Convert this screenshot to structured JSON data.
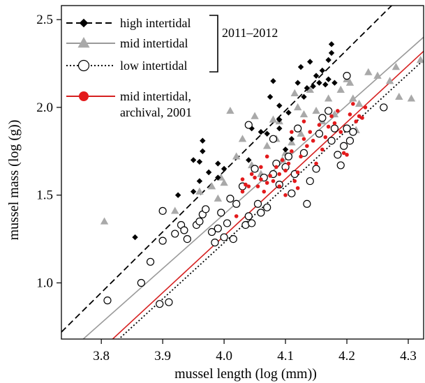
{
  "chart_data": {
    "type": "scatter",
    "xlabel": "mussel length (log (mm))",
    "ylabel": "mussel mass (log (g))",
    "xlim": [
      3.735,
      4.325
    ],
    "ylim": [
      0.68,
      2.58
    ],
    "xticks": [
      "3.8",
      "3.9",
      "4.0",
      "4.1",
      "4.2",
      "4.3"
    ],
    "yticks": [
      "1.0",
      "1.5",
      "2.0",
      "2.5"
    ],
    "legend_position": "top-left",
    "legend_bracket_label": "2011–2012",
    "grid": false,
    "series": [
      {
        "name": "high intertidal",
        "marker": "filled-diamond",
        "color": "#000000",
        "line_style": "dashed",
        "line": [
          [
            3.735,
            0.72
          ],
          [
            4.325,
            2.76
          ]
        ],
        "points": [
          [
            3.855,
            1.26
          ],
          [
            3.925,
            1.5
          ],
          [
            3.95,
            1.52
          ],
          [
            3.96,
            1.58
          ],
          [
            3.96,
            1.69
          ],
          [
            3.965,
            1.75
          ],
          [
            3.965,
            1.81
          ],
          [
            3.95,
            1.7
          ],
          [
            3.975,
            1.63
          ],
          [
            3.99,
            1.68
          ],
          [
            4.0,
            1.65
          ],
          [
            3.99,
            1.6
          ],
          [
            4.04,
            1.7
          ],
          [
            4.045,
            1.88
          ],
          [
            4.06,
            1.86
          ],
          [
            4.07,
            1.85
          ],
          [
            4.075,
            2.06
          ],
          [
            4.08,
            2.15
          ],
          [
            4.09,
            2.01
          ],
          [
            4.09,
            1.93
          ],
          [
            4.1,
            1.76
          ],
          [
            4.11,
            1.82
          ],
          [
            4.12,
            2.14
          ],
          [
            4.125,
            2.23
          ],
          [
            4.13,
            2.06
          ],
          [
            4.135,
            2.11
          ],
          [
            4.14,
            2.26
          ],
          [
            4.145,
            2.12
          ],
          [
            4.15,
            2.18
          ],
          [
            4.155,
            2.14
          ],
          [
            4.16,
            2.21
          ],
          [
            4.165,
            2.13
          ],
          [
            4.17,
            2.16
          ],
          [
            4.17,
            2.27
          ],
          [
            4.175,
            2.31
          ],
          [
            4.175,
            2.36
          ],
          [
            4.18,
            2.14
          ],
          [
            4.105,
            1.97
          ],
          [
            4.09,
            1.88
          ]
        ]
      },
      {
        "name": "mid intertidal",
        "marker": "grey-triangle",
        "color": "#a0a0a0",
        "line_style": "solid",
        "line": [
          [
            3.735,
            0.57
          ],
          [
            4.325,
            2.4
          ]
        ],
        "points": [
          [
            3.805,
            1.35
          ],
          [
            3.92,
            1.41
          ],
          [
            3.96,
            1.52
          ],
          [
            3.98,
            1.55
          ],
          [
            3.99,
            1.48
          ],
          [
            3.995,
            1.6
          ],
          [
            4.0,
            1.57
          ],
          [
            4.01,
            1.98
          ],
          [
            4.02,
            1.72
          ],
          [
            4.03,
            1.82
          ],
          [
            4.045,
            1.67
          ],
          [
            4.05,
            1.65
          ],
          [
            4.06,
            1.62
          ],
          [
            4.07,
            1.78
          ],
          [
            4.08,
            1.93
          ],
          [
            4.085,
            1.82
          ],
          [
            4.09,
            1.92
          ],
          [
            4.095,
            1.7
          ],
          [
            4.1,
            1.74
          ],
          [
            4.11,
            1.8
          ],
          [
            4.115,
            2.08
          ],
          [
            4.12,
            2.0
          ],
          [
            4.125,
            1.85
          ],
          [
            4.13,
            1.96
          ],
          [
            4.14,
            2.1
          ],
          [
            4.15,
            1.98
          ],
          [
            4.16,
            1.92
          ],
          [
            4.17,
            2.05
          ],
          [
            4.18,
            1.96
          ],
          [
            4.19,
            2.1
          ],
          [
            4.2,
            2.16
          ],
          [
            4.205,
            2.14
          ],
          [
            4.21,
            2.05
          ],
          [
            4.215,
            1.87
          ],
          [
            4.22,
            2.02
          ],
          [
            4.235,
            2.2
          ],
          [
            4.25,
            2.18
          ],
          [
            4.27,
            2.15
          ],
          [
            4.28,
            2.23
          ],
          [
            4.285,
            2.06
          ],
          [
            4.305,
            2.05
          ],
          [
            4.32,
            2.27
          ],
          [
            4.05,
            1.95
          ]
        ]
      },
      {
        "name": "low intertidal",
        "marker": "open-circle",
        "color": "#000000",
        "line_style": "dotted",
        "line": [
          [
            3.735,
            0.38
          ],
          [
            4.325,
            2.27
          ]
        ],
        "points": [
          [
            3.81,
            0.9
          ],
          [
            3.865,
            1.0
          ],
          [
            3.88,
            1.12
          ],
          [
            3.895,
            0.88
          ],
          [
            3.9,
            1.24
          ],
          [
            3.91,
            0.89
          ],
          [
            3.9,
            1.41
          ],
          [
            3.92,
            1.28
          ],
          [
            3.93,
            1.33
          ],
          [
            3.935,
            1.3
          ],
          [
            3.94,
            1.25
          ],
          [
            3.955,
            1.33
          ],
          [
            3.96,
            1.35
          ],
          [
            3.965,
            1.39
          ],
          [
            3.97,
            1.42
          ],
          [
            3.98,
            1.29
          ],
          [
            3.985,
            1.23
          ],
          [
            3.99,
            1.31
          ],
          [
            3.995,
            1.4
          ],
          [
            4.0,
            1.26
          ],
          [
            4.005,
            1.34
          ],
          [
            4.01,
            1.48
          ],
          [
            4.015,
            1.25
          ],
          [
            4.02,
            1.45
          ],
          [
            4.03,
            1.55
          ],
          [
            4.035,
            1.33
          ],
          [
            4.04,
            1.38
          ],
          [
            4.045,
            1.34
          ],
          [
            4.05,
            1.65
          ],
          [
            4.055,
            1.45
          ],
          [
            4.06,
            1.4
          ],
          [
            4.065,
            1.6
          ],
          [
            4.07,
            1.43
          ],
          [
            4.08,
            1.62
          ],
          [
            4.085,
            1.68
          ],
          [
            4.09,
            1.56
          ],
          [
            4.1,
            1.66
          ],
          [
            4.105,
            1.72
          ],
          [
            4.11,
            1.51
          ],
          [
            4.115,
            1.62
          ],
          [
            4.12,
            1.88
          ],
          [
            4.13,
            1.74
          ],
          [
            4.135,
            1.45
          ],
          [
            4.14,
            1.58
          ],
          [
            4.15,
            1.65
          ],
          [
            4.155,
            1.85
          ],
          [
            4.16,
            1.94
          ],
          [
            4.17,
            1.98
          ],
          [
            4.175,
            1.81
          ],
          [
            4.18,
            1.88
          ],
          [
            4.185,
            1.73
          ],
          [
            4.19,
            1.67
          ],
          [
            4.195,
            1.78
          ],
          [
            4.2,
            1.88
          ],
          [
            4.205,
            1.81
          ],
          [
            4.21,
            1.86
          ],
          [
            4.26,
            2.0
          ],
          [
            4.2,
            2.18
          ],
          [
            4.04,
            1.9
          ],
          [
            4.08,
            1.82
          ]
        ]
      },
      {
        "name": "mid intertidal, archival, 2001",
        "marker": "red-dot",
        "color": "#e31a1c",
        "line_style": "solid",
        "line": [
          [
            3.735,
            0.41
          ],
          [
            4.325,
            2.32
          ]
        ],
        "points": [
          [
            4.02,
            1.38
          ],
          [
            4.03,
            1.52
          ],
          [
            4.035,
            1.56
          ],
          [
            4.045,
            1.62
          ],
          [
            4.05,
            1.6
          ],
          [
            4.055,
            1.55
          ],
          [
            4.06,
            1.59
          ],
          [
            4.065,
            1.52
          ],
          [
            4.07,
            1.57
          ],
          [
            4.075,
            1.61
          ],
          [
            4.08,
            1.58
          ],
          [
            4.085,
            1.66
          ],
          [
            4.09,
            1.62
          ],
          [
            4.095,
            1.7
          ],
          [
            4.1,
            1.64
          ],
          [
            4.105,
            1.68
          ],
          [
            4.11,
            1.75
          ],
          [
            4.115,
            1.58
          ],
          [
            4.12,
            1.63
          ],
          [
            4.125,
            1.72
          ],
          [
            4.13,
            1.82
          ],
          [
            4.135,
            1.78
          ],
          [
            4.14,
            1.86
          ],
          [
            4.145,
            1.81
          ],
          [
            4.15,
            1.68
          ],
          [
            4.155,
            1.9
          ],
          [
            4.16,
            1.76
          ],
          [
            4.165,
            1.83
          ],
          [
            4.17,
            1.89
          ],
          [
            4.175,
            1.95
          ],
          [
            4.18,
            1.91
          ],
          [
            4.185,
            1.98
          ],
          [
            4.19,
            1.86
          ],
          [
            4.195,
            1.74
          ],
          [
            4.2,
            1.73
          ],
          [
            4.205,
            1.96
          ],
          [
            4.21,
            2.02
          ],
          [
            4.215,
            1.92
          ],
          [
            4.22,
            1.95
          ],
          [
            4.225,
            1.94
          ],
          [
            4.23,
            2.0
          ],
          [
            4.07,
            1.72
          ],
          [
            4.09,
            1.55
          ],
          [
            4.1,
            1.5
          ],
          [
            4.12,
            1.54
          ],
          [
            4.13,
            1.92
          ],
          [
            4.11,
            1.86
          ],
          [
            4.06,
            1.66
          ],
          [
            4.04,
            1.55
          ],
          [
            4.03,
            1.59
          ]
        ]
      }
    ]
  }
}
